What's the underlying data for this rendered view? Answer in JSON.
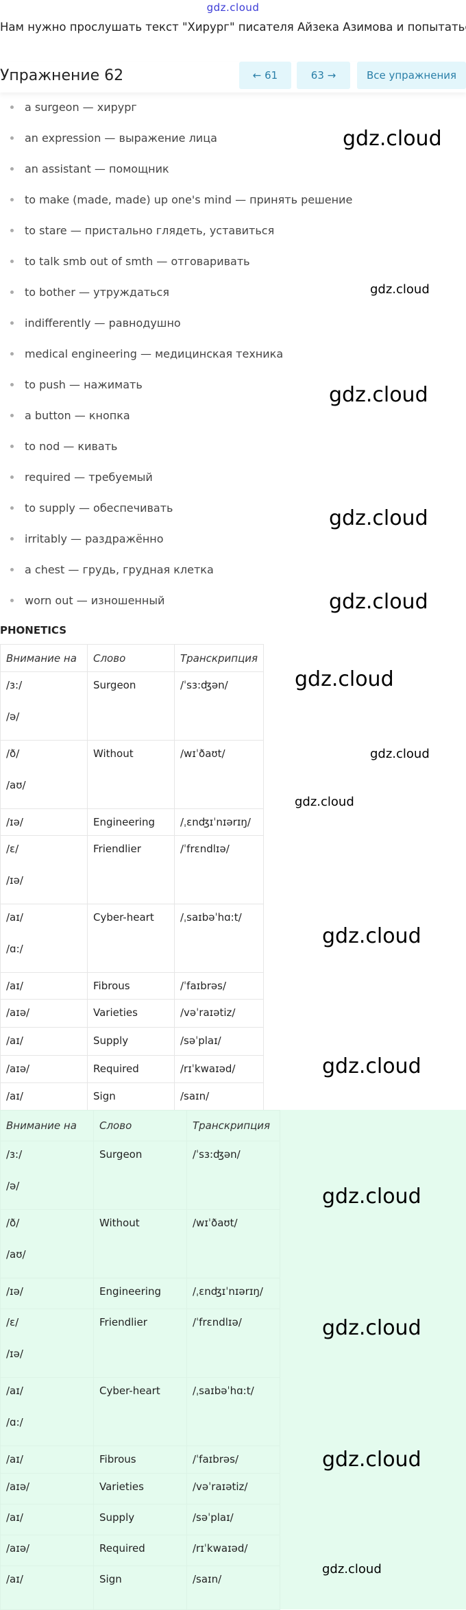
{
  "site_logo": "gdz.cloud",
  "intro": "Нам нужно прослушать текст \"Хирург\" писателя Айзека Азимова и попытаться",
  "header": {
    "title": "Упражнение 62",
    "prev": "← 61",
    "next": "63 →",
    "all": "Все упражнения"
  },
  "words": [
    "a surgeon — хирург",
    "an expression — выражение лица",
    "an assistant — помощник",
    "to make (made, made) up one's mind — принять решение",
    "to stare — пристально глядеть, уставиться",
    "to talk smb out of smth — отговаривать",
    "to bother — утруждаться",
    "indifferently — равнодушно",
    "medical engineering — медицинская техника",
    "to push — нажимать",
    "a button — кнопка",
    "to nod — кивать",
    "required — требуемый",
    "to supply — обеспечивать",
    "irritably — раздражённо",
    "a chest — грудь, грудная клетка",
    "worn out — изношенный"
  ],
  "phonetics_heading": "PHONETICS",
  "table": {
    "headers": [
      "Внимание на",
      "Слово",
      "Транскрипция"
    ],
    "rows": [
      {
        "sounds": [
          "/ɜ:/",
          "/ə/"
        ],
        "word": "Surgeon",
        "tr": "/ˈsɜ:ʤən/"
      },
      {
        "sounds": [
          "/ð/",
          "/aʊ/"
        ],
        "word": "Without",
        "tr": "/wɪˈðaʊt/"
      },
      {
        "sounds": [
          "/ɪə/"
        ],
        "word": "Engineering",
        "tr": "/ˌɛnʤɪˈnɪərɪŋ/"
      },
      {
        "sounds": [
          "/ɛ/",
          "/ɪə/"
        ],
        "word": "Friendlier",
        "tr": "/ˈfrɛndlɪə/"
      },
      {
        "sounds": [
          "/aɪ/",
          "/ɑ:/"
        ],
        "word": "Cyber-heart",
        "tr": "/ˌsaɪbəˈhɑ:t/"
      },
      {
        "sounds": [
          "/aɪ/"
        ],
        "word": "Fibrous",
        "tr": "/ˈfaɪbrəs/"
      },
      {
        "sounds": [
          "/aɪə/"
        ],
        "word": "Varieties",
        "tr": "/vəˈraɪətiz/"
      },
      {
        "sounds": [
          "/aɪ/"
        ],
        "word": "Supply",
        "tr": "/səˈplaɪ/"
      },
      {
        "sounds": [
          "/aɪə/"
        ],
        "word": "Required",
        "tr": "/rɪˈkwaɪəd/"
      },
      {
        "sounds": [
          "/aɪ/"
        ],
        "word": "Sign",
        "tr": "/saɪn/"
      }
    ]
  },
  "colors": {
    "accent": "#2a7fa8",
    "button_bg": "#e3f6fb",
    "highlight_bg": "#e4fbee"
  }
}
